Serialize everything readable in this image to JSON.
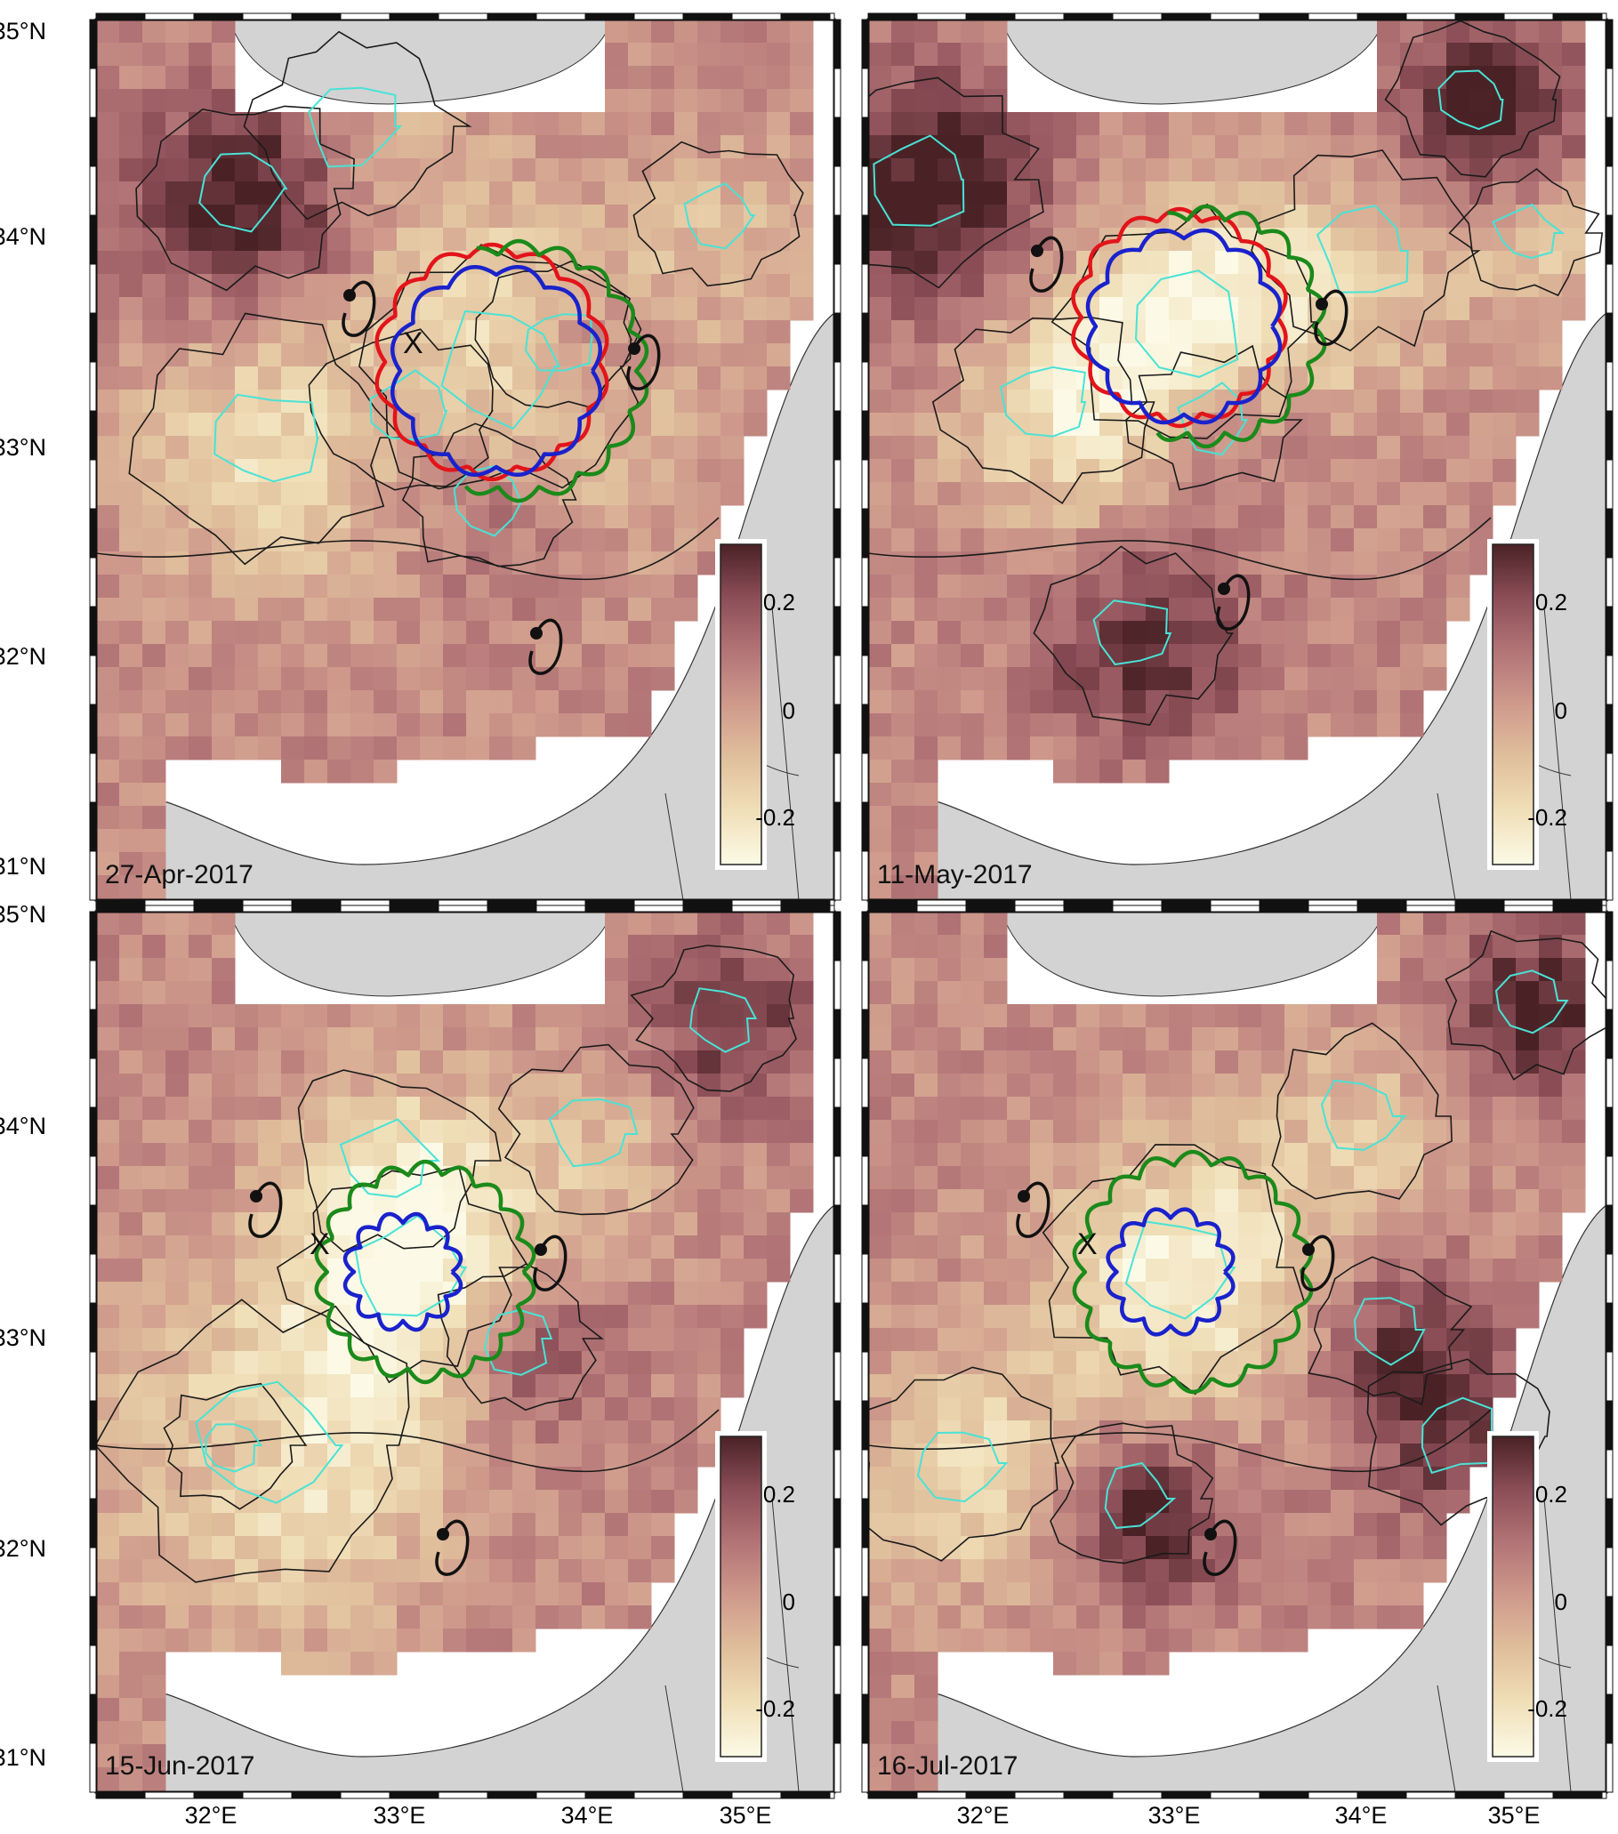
{
  "figure": {
    "lat_labels": [
      "35°N",
      "34°N",
      "33°N",
      "32°N",
      "31°N"
    ],
    "lon_labels": [
      "32°E",
      "33°E",
      "34°E",
      "35°E"
    ],
    "colorbar_ticks": [
      "0.2",
      "0",
      "-0.2"
    ],
    "colormap": [
      "#fcfae6",
      "#f0dfb8",
      "#e0bf9c",
      "#cf9a8c",
      "#b27476",
      "#8c4e57",
      "#4a2226"
    ],
    "colors": {
      "land": "#d3d3d3",
      "coast_gap": "#ffffff",
      "contour_black": "#1a1a1a",
      "contour_cyan": "#48e3d6",
      "track_red": "#e3141a",
      "track_blue": "#1a22cc",
      "track_green": "#1b8a1b",
      "drifter_black": "#111111"
    },
    "panels": [
      {
        "id": "a",
        "date": "27-Apr-2017",
        "tracks": [
          "red",
          "blue",
          "green"
        ],
        "eddy_marker": "X"
      },
      {
        "id": "b",
        "date": "11-May-2017",
        "tracks": [
          "red",
          "blue",
          "green"
        ],
        "eddy_marker": ""
      },
      {
        "id": "c",
        "date": "15-Jun-2017",
        "tracks": [
          "blue",
          "green"
        ],
        "eddy_marker": "X"
      },
      {
        "id": "d",
        "date": "16-Jul-2017",
        "tracks": [
          "blue",
          "green"
        ],
        "eddy_marker": "X"
      }
    ]
  }
}
